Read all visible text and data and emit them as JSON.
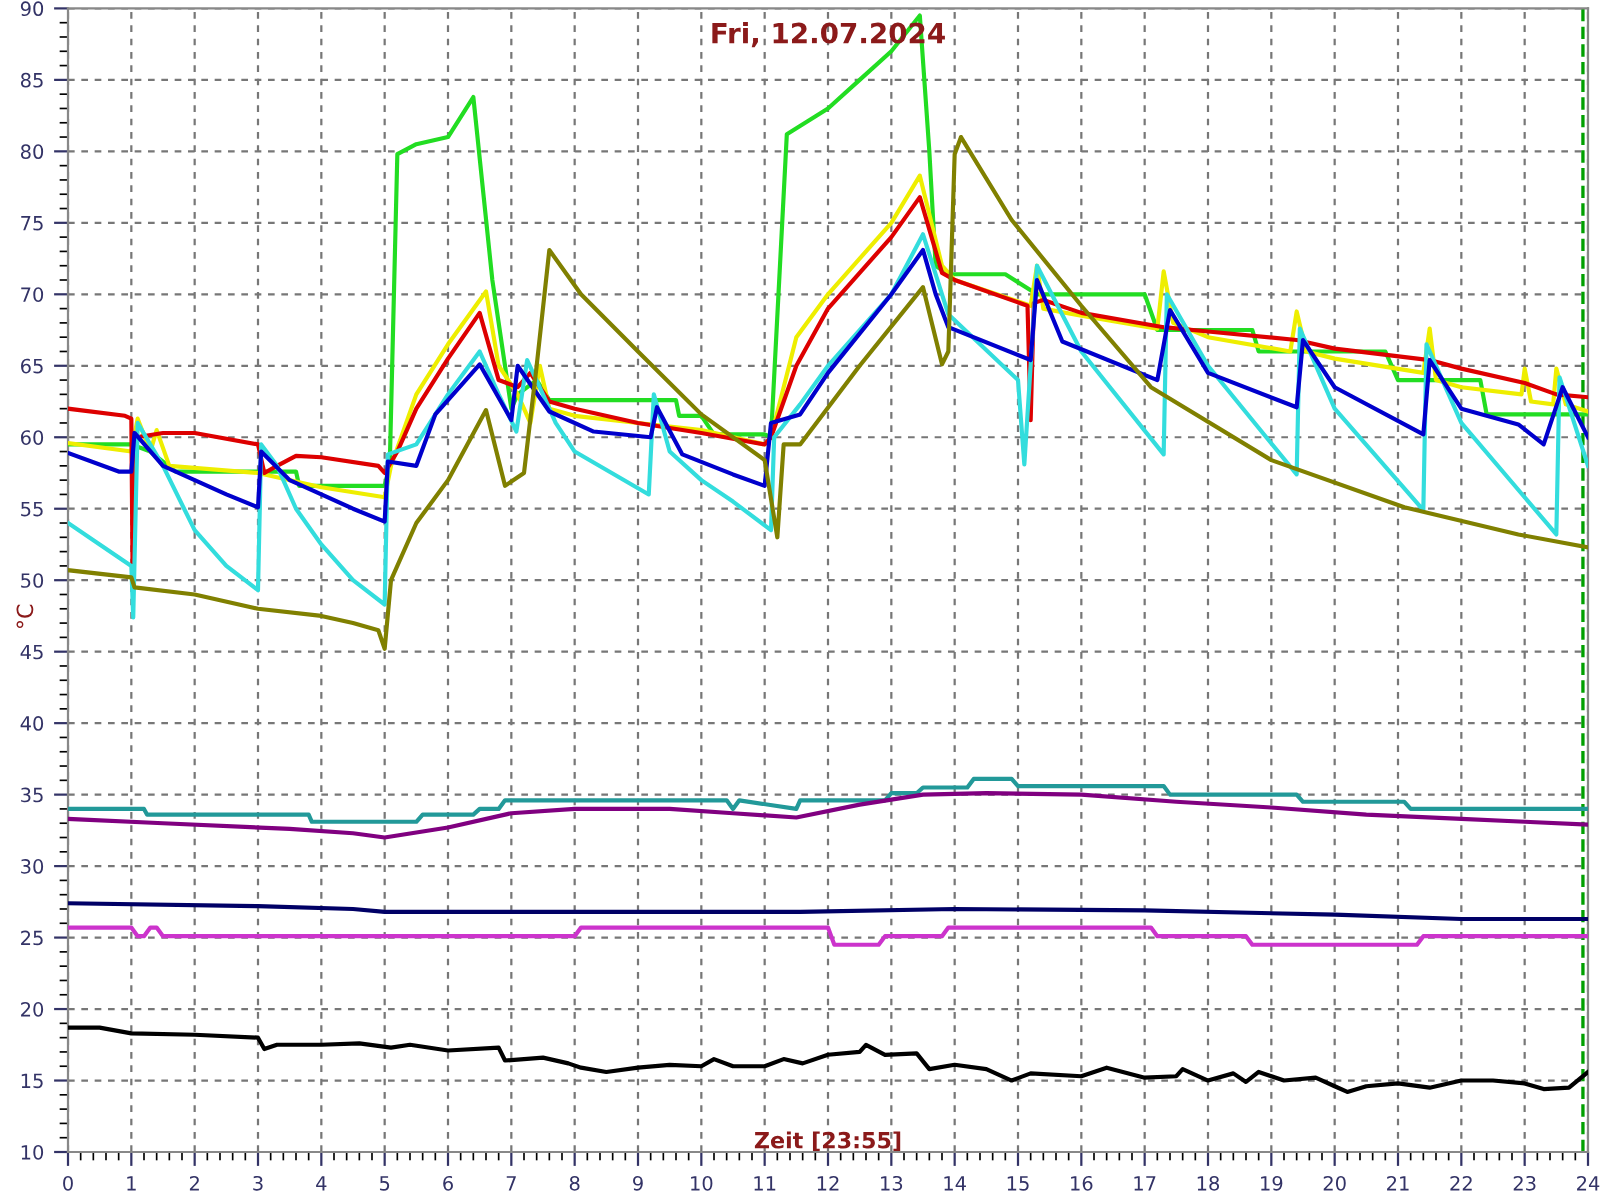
{
  "chart_data": {
    "type": "line",
    "title": "Fri, 12.07.2024",
    "xlabel": "Zeit [23:55]",
    "ylabel": "°C",
    "xlim": [
      0,
      24
    ],
    "xticks": [
      0,
      1,
      2,
      3,
      4,
      5,
      6,
      7,
      8,
      9,
      10,
      11,
      12,
      13,
      14,
      15,
      16,
      17,
      18,
      19,
      20,
      21,
      22,
      23,
      24
    ],
    "ylim": [
      10,
      90
    ],
    "yticks": [
      10,
      15,
      20,
      25,
      30,
      35,
      40,
      45,
      50,
      55,
      60,
      65,
      70,
      75,
      80,
      85,
      90
    ],
    "grid": true,
    "marker": "none",
    "line_style": "solid",
    "ref_lines": [
      {
        "axis": "x",
        "value": 23.92,
        "color": "#00a000",
        "line_style": "dashed"
      }
    ],
    "series": [
      {
        "color": "#22dd22",
        "x": [
          0,
          1.0,
          1.3,
          1.7,
          3.6,
          3.65,
          5.0,
          5.08,
          5.2,
          5.5,
          6.0,
          6.4,
          6.7,
          7.0,
          7.1,
          7.4,
          7.6,
          9.6,
          9.65,
          10.0,
          10.2,
          11.0,
          11.1,
          11.35,
          12,
          12.5,
          13,
          13.45,
          13.6,
          13.7,
          13.9,
          14.8,
          15.3,
          17.0,
          17.2,
          18.7,
          18.8,
          20.8,
          21.0,
          22.3,
          22.4,
          24
        ],
        "values": [
          59.5,
          59.5,
          59,
          57.6,
          57.6,
          56.6,
          56.6,
          58,
          79.8,
          80.5,
          81,
          83.8,
          71,
          62,
          63,
          64,
          62.6,
          62.6,
          61.5,
          61.5,
          60.2,
          60.2,
          60,
          81.2,
          83,
          85,
          87,
          89.5,
          80,
          72,
          71.4,
          71.4,
          70,
          70,
          67.5,
          67.5,
          66,
          66,
          64,
          64,
          61.6,
          61.6
        ]
      },
      {
        "color": "#eeee00",
        "x": [
          0,
          1.0,
          1.1,
          1.3,
          1.4,
          1.6,
          3.0,
          4.0,
          5.0,
          5.1,
          5.5,
          6.0,
          6.6,
          6.8,
          7.1,
          7.3,
          7.45,
          7.6,
          8,
          9,
          10,
          11,
          11.1,
          11.5,
          12,
          13,
          13.45,
          13.8,
          14,
          15.2,
          15.3,
          15.4,
          16,
          17.2,
          17.3,
          17.45,
          18,
          19.3,
          19.4,
          19.55,
          20,
          21.4,
          21.5,
          21.6,
          22,
          22.95,
          23.0,
          23.1,
          23.45,
          23.5,
          23.65,
          24
        ],
        "values": [
          59.6,
          59,
          61.3,
          59,
          60.5,
          58,
          57.5,
          56.5,
          55.8,
          58,
          63,
          66.5,
          70.2,
          65,
          63,
          61,
          65,
          62,
          61.5,
          61,
          60.5,
          59.5,
          60,
          67,
          70,
          75,
          78.3,
          72,
          71,
          69.2,
          72,
          69,
          68.5,
          67.6,
          71.6,
          68,
          67,
          66,
          68.8,
          66,
          65.5,
          64.5,
          67.6,
          64,
          63.5,
          63,
          64.8,
          62.5,
          62.3,
          64.8,
          62.3,
          61.8
        ]
      },
      {
        "color": "#dd0000",
        "x": [
          0,
          0.9,
          1.0,
          1.02,
          1.08,
          1.5,
          2,
          3,
          3.1,
          3.3,
          3.6,
          4,
          4.9,
          5.0,
          5.2,
          5.5,
          6,
          6.5,
          6.8,
          7.1,
          7.3,
          7.6,
          8,
          9,
          10,
          11,
          11.1,
          11.5,
          12,
          13,
          13.45,
          13.8,
          14,
          15.15,
          15.2,
          15.25,
          15.4,
          16,
          17.3,
          18,
          19.4,
          20,
          21.5,
          22,
          23,
          23.5,
          24
        ],
        "values": [
          62,
          61.5,
          61.3,
          50.5,
          60,
          60.3,
          60.3,
          59.5,
          57.5,
          58,
          58.7,
          58.6,
          58,
          57.5,
          59,
          62,
          65.5,
          68.7,
          64,
          63.5,
          64.5,
          62.5,
          62,
          61,
          60.3,
          59.5,
          60,
          65,
          69,
          74,
          76.8,
          71.5,
          71,
          69.2,
          61.2,
          69.4,
          69.6,
          68.7,
          67.7,
          67.4,
          66.8,
          66.2,
          65.4,
          64.8,
          63.8,
          63,
          62.8
        ]
      },
      {
        "color": "#33dddd",
        "x": [
          0,
          0.5,
          1.0,
          1.03,
          1.1,
          1.5,
          2,
          2.5,
          3.0,
          3.05,
          3.3,
          3.6,
          4,
          4.5,
          5.0,
          5.05,
          5.5,
          6,
          6.5,
          6.8,
          7.08,
          7.25,
          7.5,
          7.7,
          8,
          9.17,
          9.25,
          9.5,
          10,
          10.5,
          11.1,
          11.15,
          11.56,
          12,
          13,
          13.5,
          13.9,
          15.0,
          15.1,
          15.3,
          16,
          17.3,
          17.35,
          18,
          19.4,
          19.45,
          20,
          21.4,
          21.45,
          22,
          23.5,
          23.55,
          24
        ],
        "values": [
          54,
          52.5,
          51,
          47.4,
          61,
          58,
          53.5,
          51,
          49.3,
          59.5,
          58,
          55,
          52.5,
          50,
          48.3,
          58.8,
          59.5,
          63,
          66,
          63,
          60.4,
          65.4,
          63,
          61,
          59,
          56,
          63,
          59,
          57,
          55.5,
          53.5,
          60,
          62.3,
          65,
          70,
          74.2,
          68.6,
          64,
          58.1,
          72,
          66,
          58.8,
          70,
          65,
          57.4,
          67.6,
          62,
          54.9,
          66.5,
          61,
          53.2,
          64.2,
          58
        ]
      },
      {
        "color": "#0000cc",
        "x": [
          0,
          0.8,
          1.0,
          1.05,
          1.5,
          2,
          2.5,
          3.0,
          3.05,
          3.5,
          4,
          4.5,
          5.0,
          5.05,
          5.5,
          5.8,
          6.5,
          7.0,
          7.1,
          7.6,
          8.3,
          9.2,
          9.3,
          9.7,
          10.5,
          11.0,
          11.1,
          11.56,
          12,
          13,
          13.5,
          13.7,
          13.9,
          15.2,
          15.3,
          15.7,
          17.2,
          17.4,
          18,
          19.4,
          19.5,
          20,
          21.4,
          21.5,
          22,
          22.9,
          23.3,
          23.6,
          24
        ],
        "values": [
          58.9,
          57.6,
          57.6,
          60.3,
          58,
          57,
          56,
          55.1,
          59,
          57,
          56,
          55,
          54.1,
          58.3,
          58,
          61.6,
          65.1,
          61.2,
          65,
          61.8,
          60.4,
          60,
          62.1,
          58.8,
          57.4,
          56.6,
          61,
          61.6,
          64.5,
          70,
          73.1,
          70,
          67.7,
          65.4,
          71,
          66.7,
          64,
          68.9,
          64.5,
          62.1,
          66.8,
          63.5,
          60.2,
          65.4,
          62,
          60.9,
          59.5,
          63.5,
          60
        ]
      },
      {
        "color": "#808000",
        "x": [
          0,
          1.0,
          1.05,
          2,
          3,
          4,
          4.5,
          4.9,
          5.0,
          5.1,
          5.5,
          6,
          6.6,
          6.9,
          7.2,
          7.4,
          7.6,
          8.1,
          9.0,
          10.0,
          11.0,
          11.2,
          11.3,
          11.56,
          12.5,
          13.5,
          13.8,
          13.9,
          14.0,
          14.1,
          14.9,
          16.0,
          17.1,
          19.0,
          21.1,
          22.9,
          24
        ],
        "values": [
          50.7,
          50.2,
          49.5,
          49,
          48,
          47.5,
          47,
          46.5,
          45.2,
          50,
          54,
          57,
          61.9,
          56.6,
          57.5,
          65,
          73.1,
          70,
          66,
          61.6,
          58.4,
          53,
          59.5,
          59.5,
          65,
          70.5,
          65.1,
          66,
          79.8,
          81,
          75.2,
          69.2,
          63.5,
          58.4,
          55.1,
          53.2,
          52.3
        ]
      },
      {
        "color": "#229999",
        "x": [
          0,
          1.2,
          1.25,
          3.8,
          3.85,
          5.5,
          5.6,
          6.4,
          6.5,
          6.8,
          6.9,
          10.4,
          10.5,
          10.6,
          11.5,
          11.56,
          12.9,
          13.0,
          13.4,
          13.5,
          14.2,
          14.3,
          14.9,
          15.0,
          17.3,
          17.4,
          17.5,
          19.4,
          19.5,
          21.1,
          21.2,
          24
        ],
        "values": [
          34,
          34,
          33.6,
          33.6,
          33.1,
          33.1,
          33.6,
          33.6,
          34,
          34,
          34.6,
          34.6,
          34,
          34.6,
          34,
          34.6,
          34.6,
          35.1,
          35.1,
          35.5,
          35.5,
          36.1,
          36.1,
          35.6,
          35.6,
          35,
          35,
          35,
          34.5,
          34.5,
          34,
          34
        ]
      },
      {
        "color": "#800080",
        "x": [
          0,
          1.5,
          3.5,
          4.5,
          5,
          6,
          7,
          8,
          9.5,
          10.5,
          11.5,
          12.5,
          13.5,
          14.5,
          16,
          17.5,
          19,
          20.5,
          22,
          23,
          24
        ],
        "values": [
          33.3,
          33,
          32.6,
          32.3,
          32.0,
          32.7,
          33.7,
          34,
          34,
          33.7,
          33.4,
          34.3,
          35,
          35.1,
          35,
          34.5,
          34.1,
          33.6,
          33.3,
          33.1,
          32.9
        ]
      },
      {
        "color": "#000066",
        "x": [
          0,
          3,
          4.5,
          5,
          11.56,
          14,
          17,
          20,
          22,
          24
        ],
        "values": [
          27.4,
          27.2,
          27,
          26.8,
          26.8,
          27.0,
          26.9,
          26.6,
          26.3,
          26.3
        ]
      },
      {
        "color": "#cc33cc",
        "x": [
          0,
          1.0,
          1.1,
          1.2,
          1.3,
          1.4,
          1.5,
          8.0,
          8.1,
          12.0,
          12.1,
          12.8,
          12.9,
          13.8,
          13.9,
          17.1,
          17.2,
          18.6,
          18.7,
          21.3,
          21.4,
          24
        ],
        "values": [
          25.7,
          25.7,
          25.1,
          25.1,
          25.7,
          25.7,
          25.1,
          25.1,
          25.7,
          25.7,
          24.5,
          24.5,
          25.1,
          25.1,
          25.7,
          25.7,
          25.1,
          25.1,
          24.5,
          24.5,
          25.1,
          25.1
        ]
      },
      {
        "color": "#000000",
        "x": [
          0,
          0.5,
          1,
          2,
          3,
          3.1,
          3.3,
          4,
          4.6,
          5.1,
          5.4,
          6,
          6.8,
          6.9,
          7.5,
          7.9,
          8.1,
          8.5,
          9,
          9.5,
          10,
          10.2,
          10.5,
          11,
          11.3,
          11.6,
          12,
          12.5,
          12.6,
          12.9,
          13.4,
          13.6,
          14,
          14.5,
          14.9,
          15.2,
          16,
          16.4,
          17,
          17.5,
          17.6,
          18,
          18.4,
          18.6,
          18.8,
          19.2,
          19.7,
          20,
          20.2,
          20.5,
          21,
          21.5,
          22,
          22.5,
          23,
          23.3,
          23.7,
          24
        ],
        "values": [
          18.7,
          18.7,
          18.3,
          18.2,
          18.0,
          17.2,
          17.5,
          17.5,
          17.6,
          17.3,
          17.5,
          17.1,
          17.3,
          16.4,
          16.6,
          16.2,
          15.9,
          15.6,
          15.9,
          16.1,
          16,
          16.5,
          16,
          16,
          16.5,
          16.2,
          16.8,
          17.0,
          17.5,
          16.8,
          16.9,
          15.8,
          16.1,
          15.8,
          15.0,
          15.5,
          15.3,
          15.9,
          15.2,
          15.3,
          15.8,
          15,
          15.5,
          14.9,
          15.6,
          15,
          15.2,
          14.6,
          14.2,
          14.6,
          14.8,
          14.5,
          15,
          15,
          14.8,
          14.4,
          14.5,
          15.6
        ]
      }
    ]
  }
}
